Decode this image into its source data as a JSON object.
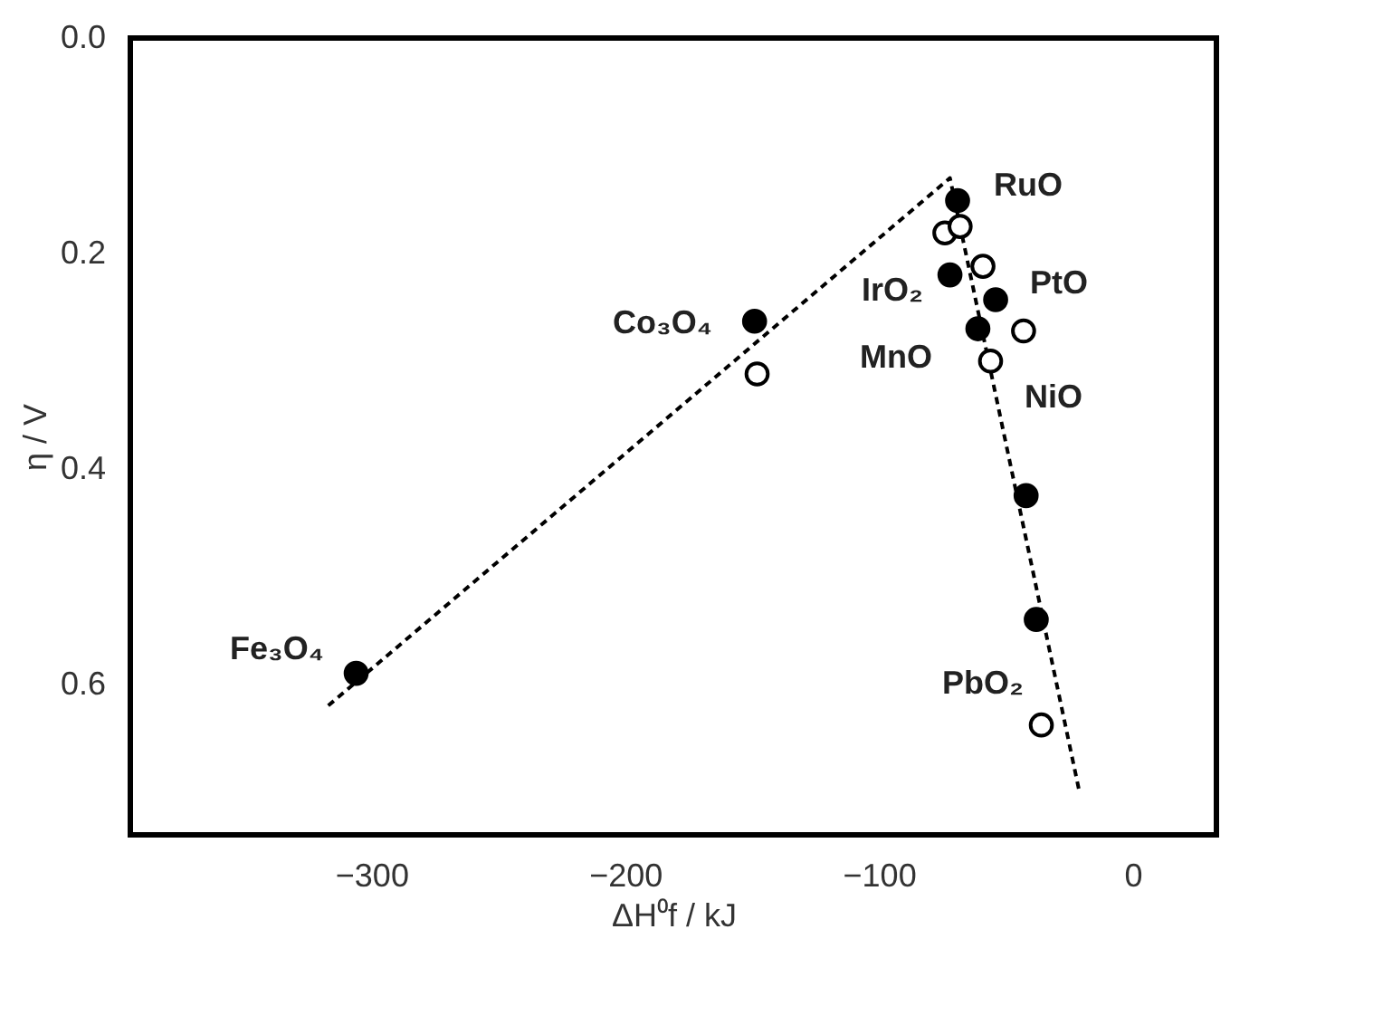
{
  "chart_data": {
    "type": "scatter",
    "xlabel": "ΔH⁰f / kJ",
    "ylabel": "η / V",
    "xlim": [
      -395,
      33
    ],
    "ylim": [
      0.74,
      0
    ],
    "xticks": [
      -300,
      -200,
      -100,
      0
    ],
    "yticks": [
      {
        "value": 0,
        "label": "0.0"
      },
      {
        "value": 0.2,
        "label": "0.2"
      },
      {
        "value": 0.4,
        "label": "0.4"
      },
      {
        "value": 0.6,
        "label": "0.6"
      }
    ],
    "grid": false,
    "marker": "circle",
    "series": [
      {
        "type": "line",
        "marker": "none",
        "line_style": "dashed",
        "color": "#000000",
        "x": [
          -317,
          -72,
          -21
        ],
        "values": [
          0.62,
          0.13,
          0.7
        ]
      },
      {
        "color": "#000000",
        "x": [
          -69,
          -72,
          -54,
          -61,
          -149,
          -306,
          -42,
          -38
        ],
        "values": [
          0.151,
          0.22,
          0.243,
          0.27,
          0.263,
          0.59,
          0.425,
          0.54
        ]
      },
      {
        "color": "#ffffff",
        "x": [
          -74,
          -68,
          -59,
          -43,
          -56,
          -148,
          -36
        ],
        "values": [
          0.181,
          0.175,
          0.212,
          0.272,
          0.3,
          0.312,
          0.638
        ]
      }
    ],
    "annotations": [
      "RuO",
      "IrO₂",
      "PtO",
      "MnO",
      "NiO",
      "PbO₂",
      "Fe₃O₄",
      "Co₃O₄"
    ]
  }
}
